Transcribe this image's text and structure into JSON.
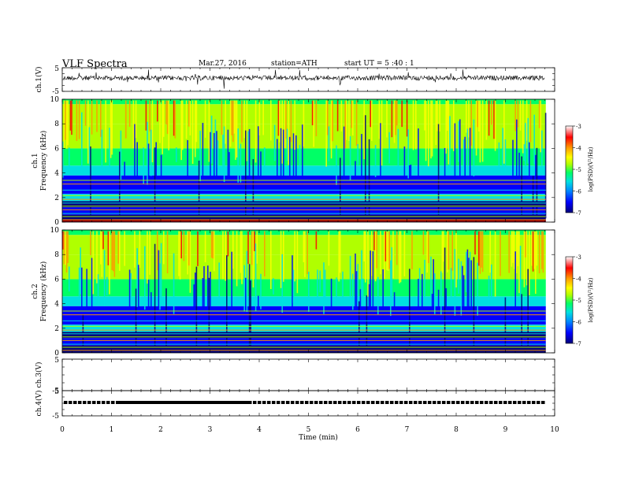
{
  "header": {
    "title": "VLF  Spectra",
    "date": "Mar.27, 2016",
    "station": "station=ATH",
    "start": "start  UT  =   5  :40 : 1"
  },
  "chart_data": [
    {
      "id": "ch1-waveform",
      "type": "line",
      "ylabel": "ch.1(V)",
      "ylim": [
        -5,
        5
      ],
      "yticks": [
        "5",
        "-5"
      ],
      "baseline": 0,
      "data_end_min": 9.8
    },
    {
      "id": "ch1-spectrogram",
      "type": "heatmap",
      "ylabel": "ch.1",
      "ylabel2": "Frequency  (kHz)",
      "ylim": [
        0,
        10
      ],
      "yticks": [
        "0",
        "2",
        "4",
        "6",
        "8",
        "10"
      ],
      "colorbar": {
        "label": "log(PSD)(V²/Hz)",
        "range": [
          -7,
          -3
        ],
        "ticks": [
          "-3",
          "-4",
          "-5",
          "-6",
          "-7"
        ]
      }
    },
    {
      "id": "ch2-spectrogram",
      "type": "heatmap",
      "ylabel": "ch.2",
      "ylabel2": "Frequency  (kHz)",
      "ylim": [
        0,
        10
      ],
      "yticks": [
        "0",
        "2",
        "4",
        "6",
        "8",
        "10"
      ],
      "colorbar": {
        "label": "log(PSD)(V²/Hz)",
        "range": [
          -7,
          -3
        ],
        "ticks": [
          "-3",
          "-4",
          "-5",
          "-6",
          "-7"
        ]
      }
    },
    {
      "id": "ch3-waveform",
      "type": "line",
      "ylabel": "ch.3(V)",
      "ylim": [
        -5,
        5
      ],
      "yticks": [
        "5",
        "-5"
      ]
    },
    {
      "id": "ch4-waveform",
      "type": "line",
      "ylabel": "ch.4(V)",
      "ylim": [
        -5,
        5
      ],
      "yticks": [
        "5",
        "-5"
      ]
    }
  ],
  "xaxis": {
    "label": "Time  (min)",
    "range": [
      0,
      10
    ],
    "ticks": [
      "0",
      "1",
      "2",
      "3",
      "4",
      "5",
      "6",
      "7",
      "8",
      "9",
      "10"
    ]
  },
  "colors": {
    "scale": [
      "#00007a",
      "#0000ff",
      "#0088ff",
      "#00e0e0",
      "#00ff66",
      "#b0ff00",
      "#ffff00",
      "#ff9900",
      "#ff0000",
      "#ffffff"
    ]
  }
}
